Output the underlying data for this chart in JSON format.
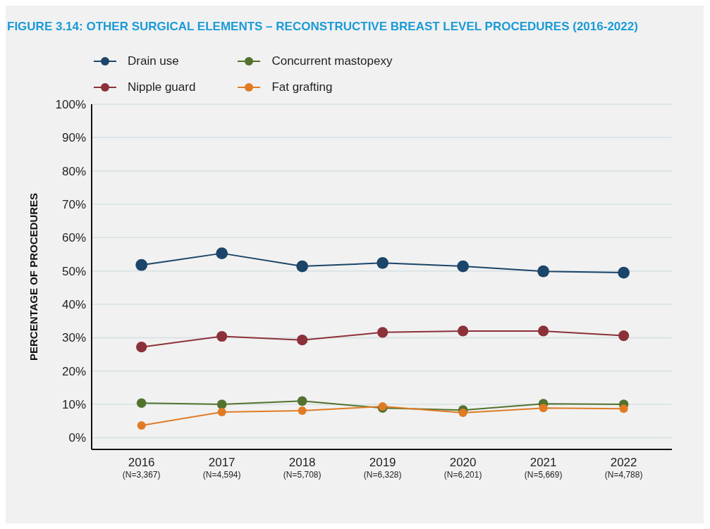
{
  "chart_data": {
    "type": "line",
    "title": "FIGURE 3.14: OTHER SURGICAL ELEMENTS – RECONSTRUCTIVE BREAST LEVEL PROCEDURES (2016-2022)",
    "ylabel": "PERCENTAGE OF PROCEDURES",
    "categories": [
      "2016\n(N=3,367)",
      "2017\n(N=4,594)",
      "2018\n(N=5,708)",
      "2019\n(N=6,328)",
      "2020\n(N=6,201)",
      "2021\n(N=5,669)",
      "2022\n(N=4,788)"
    ],
    "series": [
      {
        "name": "Drain use",
        "color": "#1b4569",
        "values": [
          51.8,
          55.3,
          51.4,
          52.4,
          51.4,
          49.9,
          49.5
        ]
      },
      {
        "name": "Nipple guard",
        "color": "#8c3139",
        "values": [
          27.2,
          30.4,
          29.3,
          31.6,
          32.0,
          32.0,
          30.6
        ]
      },
      {
        "name": "Concurrent mastopexy",
        "color": "#52722e",
        "values": [
          10.4,
          10.0,
          11.0,
          8.9,
          8.3,
          10.2,
          10.0
        ]
      },
      {
        "name": "Fat grafting",
        "color": "#e07b24",
        "values": [
          3.7,
          7.7,
          8.1,
          9.4,
          7.5,
          8.9,
          8.7
        ]
      }
    ],
    "ylim": [
      -3.5,
      100
    ],
    "yticks": [
      {
        "value": 0,
        "label": "0%"
      },
      {
        "value": 10,
        "label": "10%"
      },
      {
        "value": 20,
        "label": "20%"
      },
      {
        "value": 30,
        "label": "30%"
      },
      {
        "value": 40,
        "label": "40%"
      },
      {
        "value": 50,
        "label": "50%"
      },
      {
        "value": 60,
        "label": "60%"
      },
      {
        "value": 70,
        "label": "70%"
      },
      {
        "value": 80,
        "label": "80%"
      },
      {
        "value": 90,
        "label": "90%"
      },
      {
        "value": 100,
        "label": "100%"
      }
    ],
    "grid": "y",
    "legend": "top left",
    "marker": "circle",
    "line_style": "solid"
  }
}
